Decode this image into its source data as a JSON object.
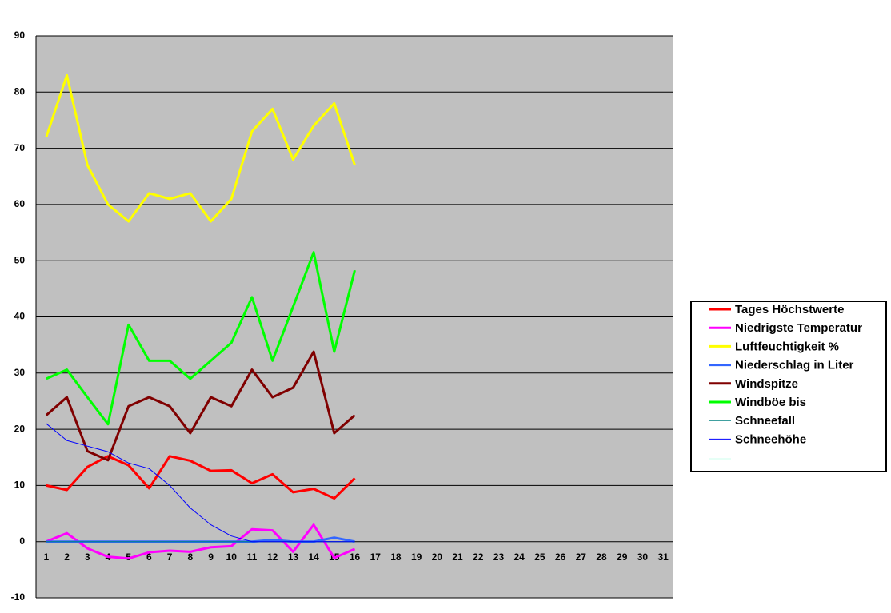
{
  "chart_data": {
    "type": "line",
    "categories": [
      1,
      2,
      3,
      4,
      5,
      6,
      7,
      8,
      9,
      10,
      11,
      12,
      13,
      14,
      15,
      16,
      17,
      18,
      19,
      20,
      21,
      22,
      23,
      24,
      25,
      26,
      27,
      28,
      29,
      30,
      31
    ],
    "series": [
      {
        "name": "Tages Höchstwerte",
        "color": "#ff0000",
        "width": 3,
        "values": [
          10,
          9.2,
          13.3,
          15.2,
          13.6,
          9.5,
          15.2,
          14.4,
          12.6,
          12.7,
          10.4,
          12,
          8.8,
          9.4,
          7.7,
          11.3,
          null,
          null,
          null,
          null,
          null,
          null,
          null,
          null,
          null,
          null,
          null,
          null,
          null,
          null,
          null
        ]
      },
      {
        "name": "Niedrigste Temperatur",
        "color": "#ff00ff",
        "width": 3,
        "values": [
          0,
          1.5,
          -1.2,
          -2.7,
          -3,
          -1.9,
          -1.6,
          -1.8,
          -1,
          -0.8,
          2.2,
          2,
          -1.8,
          3,
          -2.9,
          -1.3,
          null,
          null,
          null,
          null,
          null,
          null,
          null,
          null,
          null,
          null,
          null,
          null,
          null,
          null,
          null
        ]
      },
      {
        "name": "Luftfeuchtigkeit %",
        "color": "#ffff00",
        "width": 3,
        "values": [
          72,
          83,
          67,
          60,
          57,
          62,
          61,
          62,
          57,
          61,
          73,
          77,
          68,
          74,
          78,
          67,
          null,
          null,
          null,
          null,
          null,
          null,
          null,
          null,
          null,
          null,
          null,
          null,
          null,
          null,
          null
        ]
      },
      {
        "name": "Niederschlag in Liter",
        "color": "#3366ff",
        "width": 3,
        "values": [
          0,
          0,
          0,
          0,
          0,
          0,
          0,
          0,
          0,
          0,
          0,
          0.3,
          0,
          0,
          0.7,
          0,
          null,
          null,
          null,
          null,
          null,
          null,
          null,
          null,
          null,
          null,
          null,
          null,
          null,
          null,
          null
        ]
      },
      {
        "name": "Windspitze",
        "color": "#800000",
        "width": 3,
        "values": [
          22.5,
          25.7,
          16.1,
          14.5,
          24.1,
          25.7,
          24.1,
          19.3,
          25.7,
          24.1,
          30.6,
          25.7,
          27.4,
          33.8,
          19.3,
          22.5,
          null,
          null,
          null,
          null,
          null,
          null,
          null,
          null,
          null,
          null,
          null,
          null,
          null,
          null,
          null
        ]
      },
      {
        "name": "Windböe bis",
        "color": "#00ff00",
        "width": 3,
        "values": [
          29,
          30.6,
          25.7,
          20.9,
          38.6,
          32.2,
          32.2,
          29,
          32.2,
          35.4,
          43.5,
          32.2,
          41.8,
          51.5,
          33.8,
          48.3,
          null,
          null,
          null,
          null,
          null,
          null,
          null,
          null,
          null,
          null,
          null,
          null,
          null,
          null,
          null
        ]
      },
      {
        "name": "Schneefall",
        "color": "#008080",
        "width": 1,
        "values": [
          0,
          0,
          0,
          0,
          0,
          0,
          0,
          0,
          0,
          0,
          0,
          0,
          0,
          0,
          0,
          0,
          null,
          null,
          null,
          null,
          null,
          null,
          null,
          null,
          null,
          null,
          null,
          null,
          null,
          null,
          null
        ]
      },
      {
        "name": "Schneehöhe",
        "color": "#0000ff",
        "width": 1,
        "values": [
          21,
          18,
          17,
          16,
          14,
          13,
          10,
          6,
          3,
          1,
          0,
          0,
          0,
          0,
          0,
          0,
          null,
          null,
          null,
          null,
          null,
          null,
          null,
          null,
          null,
          null,
          null,
          null,
          null,
          null,
          null
        ]
      }
    ],
    "ylim": [
      -10,
      90
    ],
    "yticks": [
      -10,
      0,
      10,
      20,
      30,
      40,
      50,
      60,
      70,
      80,
      90
    ],
    "grid": true
  }
}
